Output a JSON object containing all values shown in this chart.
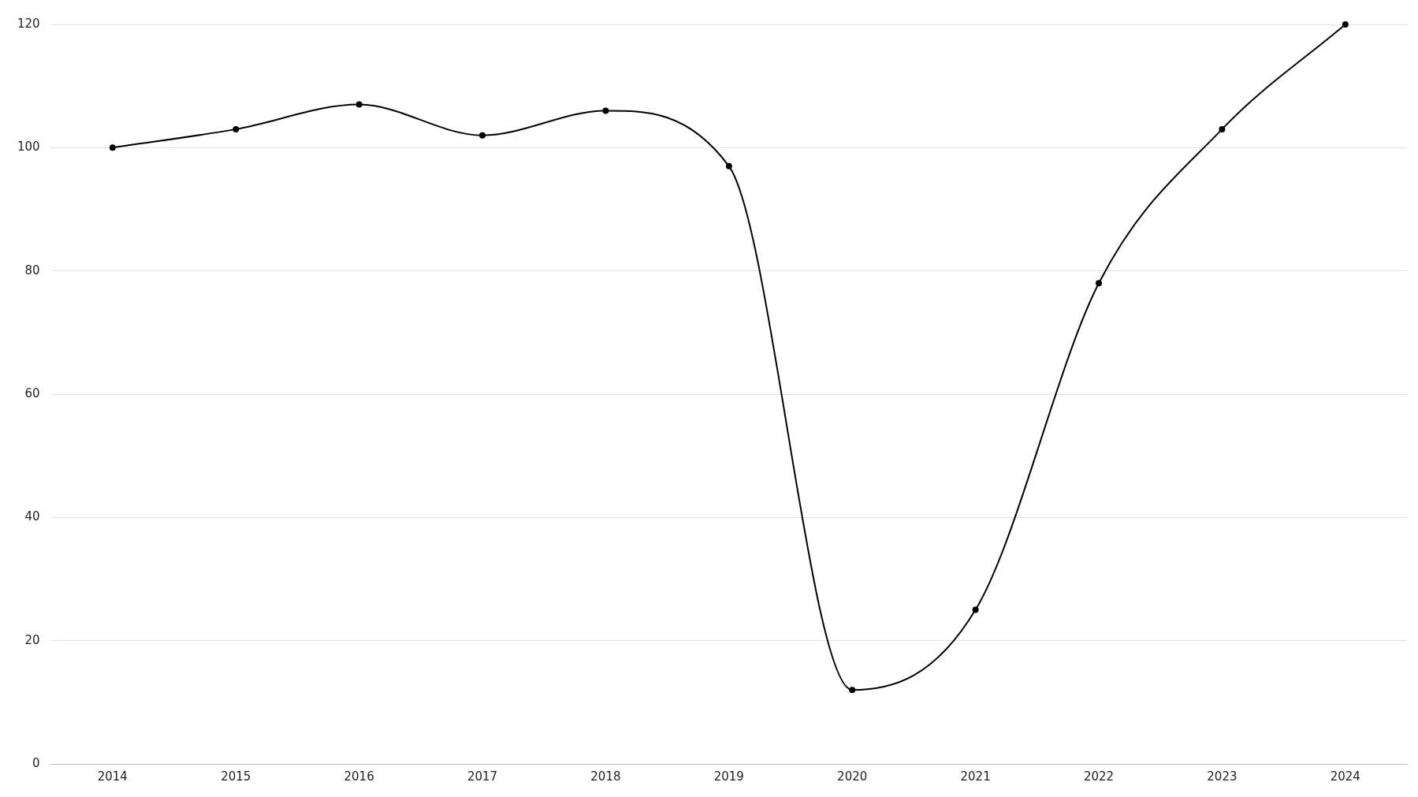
{
  "chart_data": {
    "type": "line",
    "categories": [
      "2014",
      "2015",
      "2016",
      "2017",
      "2018",
      "2019",
      "2020",
      "2021",
      "2022",
      "2023",
      "2024"
    ],
    "series": [
      {
        "color": "#000000",
        "values": [
          100,
          103,
          107,
          102,
          106,
          97,
          12,
          25,
          78,
          103,
          120
        ]
      }
    ],
    "ylim": [
      0,
      120
    ],
    "yticks": [
      0,
      20,
      40,
      60,
      80,
      100,
      120
    ],
    "grid": "y",
    "marker": "circle",
    "line_style": "solid"
  }
}
